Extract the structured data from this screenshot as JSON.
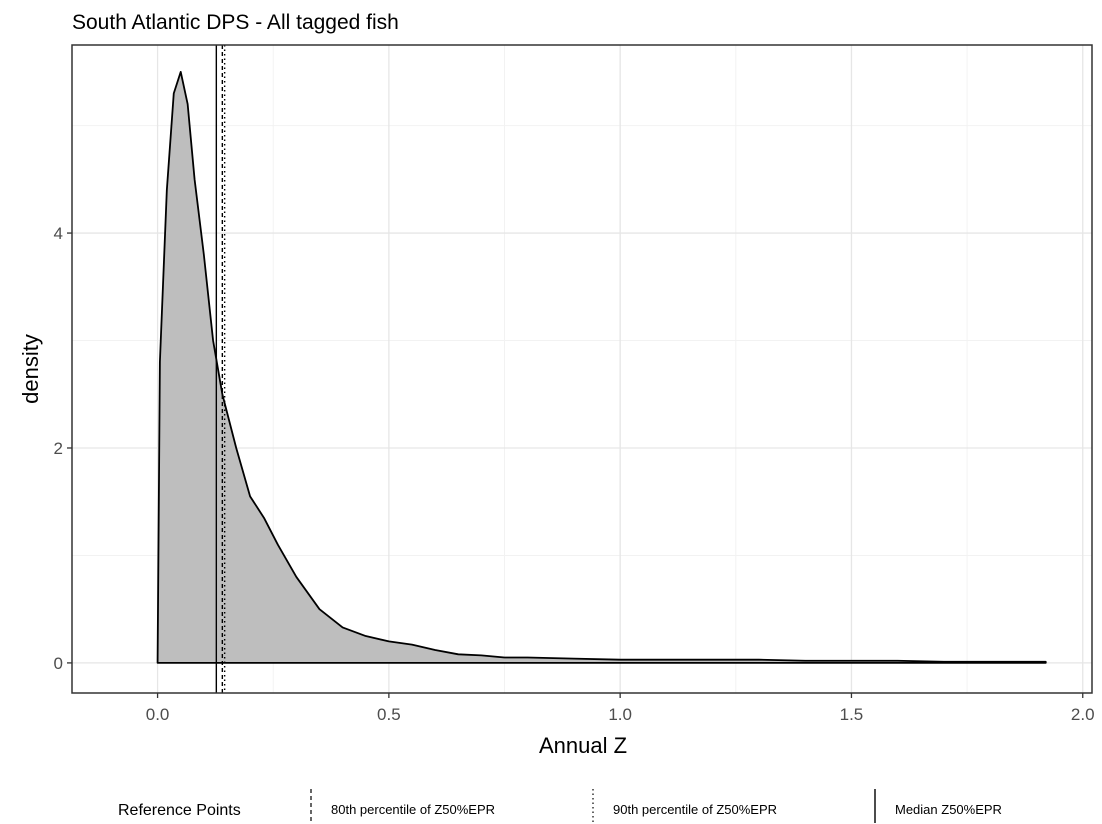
{
  "chart_data": {
    "type": "area",
    "title": "South Atlantic DPS - All tagged fish",
    "xlabel": "Annual Z",
    "ylabel": "density",
    "xlim": [
      -0.185,
      2.02
    ],
    "ylim": [
      -0.28,
      5.75
    ],
    "x_ticks": [
      0.0,
      0.5,
      1.0,
      1.5,
      2.0
    ],
    "x_tick_labels": [
      "0.0",
      "0.5",
      "1.0",
      "1.5",
      "2.0"
    ],
    "y_ticks": [
      0,
      2,
      4
    ],
    "y_tick_labels": [
      "0",
      "2",
      "4"
    ],
    "grid": true,
    "fill_color": "#bebebe",
    "density_curve": {
      "x": [
        0.0,
        0.005,
        0.02,
        0.035,
        0.05,
        0.065,
        0.08,
        0.1,
        0.12,
        0.14,
        0.17,
        0.2,
        0.23,
        0.26,
        0.3,
        0.35,
        0.4,
        0.45,
        0.5,
        0.55,
        0.6,
        0.65,
        0.7,
        0.75,
        0.8,
        0.9,
        1.0,
        1.1,
        1.2,
        1.3,
        1.4,
        1.5,
        1.6,
        1.7,
        1.8,
        1.92
      ],
      "y": [
        0.0,
        2.8,
        4.4,
        5.3,
        5.5,
        5.2,
        4.5,
        3.8,
        3.0,
        2.5,
        2.0,
        1.55,
        1.35,
        1.1,
        0.8,
        0.5,
        0.33,
        0.25,
        0.2,
        0.17,
        0.12,
        0.08,
        0.07,
        0.05,
        0.05,
        0.04,
        0.03,
        0.03,
        0.03,
        0.03,
        0.02,
        0.02,
        0.02,
        0.01,
        0.01,
        0.01
      ]
    },
    "reference_lines": [
      {
        "label": "80th percentile of Z50%EPR",
        "x": 0.14,
        "style": "dashed"
      },
      {
        "label": "90th percentile of Z50%EPR",
        "x": 0.145,
        "style": "dotted"
      },
      {
        "label": "Median Z50%EPR",
        "x": 0.127,
        "style": "solid"
      }
    ],
    "legend": {
      "title": "Reference Points",
      "position": "bottom"
    }
  }
}
